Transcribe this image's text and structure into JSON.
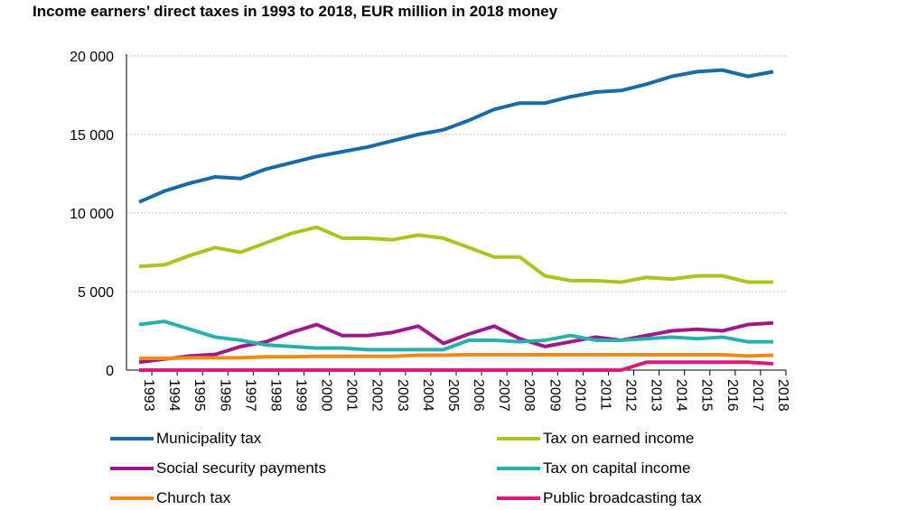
{
  "chart_data": {
    "type": "line",
    "title": "Income earners’ direct taxes in 1993 to 2018, EUR million in 2018 money",
    "xlabel": "",
    "ylabel": "",
    "ylim": [
      0,
      20000
    ],
    "yticks": [
      0,
      5000,
      10000,
      15000,
      20000
    ],
    "ytick_labels": [
      "0",
      "5 000",
      "10 000",
      "15 000",
      "20 000"
    ],
    "grid": "horizontal dotted",
    "legend": "bottom",
    "categories": [
      "1993",
      "1994",
      "1995",
      "1996",
      "1997",
      "1998",
      "1999",
      "2000",
      "2001",
      "2002",
      "2003",
      "2004",
      "2005",
      "2006",
      "2007",
      "2008",
      "2009",
      "2010",
      "2011",
      "2012",
      "2013",
      "2014",
      "2015",
      "2016",
      "2017",
      "2018"
    ],
    "series": [
      {
        "name": "Municipality tax",
        "color": "#1a6aa8",
        "values": [
          10700,
          11400,
          11900,
          12300,
          12200,
          12800,
          13200,
          13600,
          13900,
          14200,
          14600,
          15000,
          15300,
          15900,
          16600,
          17000,
          17000,
          17400,
          17700,
          17800,
          18200,
          18700,
          19000,
          19100,
          18700,
          19000
        ]
      },
      {
        "name": "Tax on earned income",
        "color": "#a8c520",
        "values": [
          6600,
          6700,
          7300,
          7800,
          7500,
          8100,
          8700,
          9100,
          8400,
          8400,
          8300,
          8600,
          8400,
          7800,
          7200,
          7200,
          6000,
          5700,
          5700,
          5600,
          5900,
          5800,
          6000,
          6000,
          5600,
          5600
        ]
      },
      {
        "name": "Social security payments",
        "color": "#9c1a8c",
        "values": [
          500,
          700,
          900,
          1000,
          1500,
          1800,
          2400,
          2900,
          2200,
          2200,
          2400,
          2800,
          1700,
          2300,
          2800,
          2000,
          1500,
          1800,
          2100,
          1900,
          2200,
          2500,
          2600,
          2500,
          2900,
          3000
        ]
      },
      {
        "name": "Tax on capital income",
        "color": "#2ab0ac",
        "values": [
          2900,
          3100,
          2600,
          2100,
          1900,
          1600,
          1500,
          1400,
          1400,
          1300,
          1300,
          1300,
          1300,
          1900,
          1900,
          1800,
          1900,
          2200,
          1900,
          1900,
          2000,
          2100,
          2000,
          2100,
          1800,
          1800
        ]
      },
      {
        "name": "Church tax",
        "color": "#ee8a1a",
        "values": [
          750,
          750,
          780,
          780,
          780,
          850,
          850,
          880,
          880,
          880,
          880,
          950,
          950,
          980,
          980,
          980,
          980,
          980,
          980,
          980,
          980,
          980,
          980,
          980,
          900,
          950
        ]
      },
      {
        "name": "Public broadcasting tax",
        "color": "#d81c78",
        "values": [
          0,
          0,
          0,
          0,
          0,
          0,
          0,
          0,
          0,
          0,
          0,
          0,
          0,
          0,
          0,
          0,
          0,
          0,
          0,
          0,
          500,
          500,
          500,
          500,
          500,
          400
        ]
      }
    ]
  }
}
